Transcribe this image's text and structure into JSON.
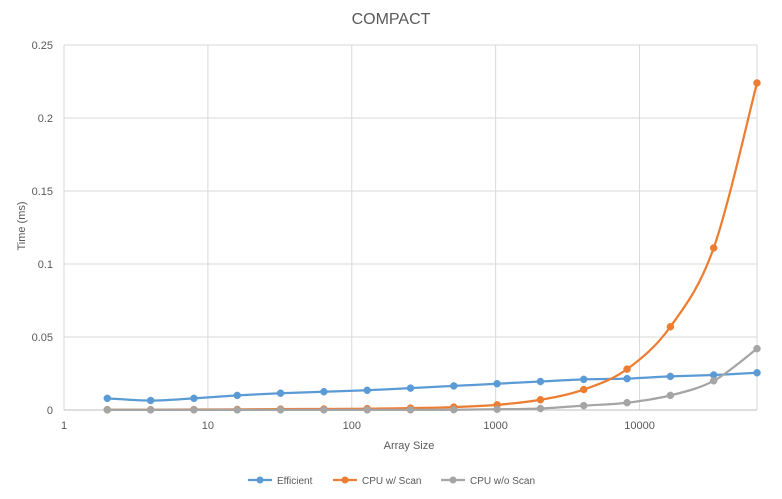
{
  "chart_data": {
    "type": "line",
    "title": "COMPACT",
    "xlabel": "Array Size",
    "ylabel": "Time (ms)",
    "x_scale": "log10",
    "xlim": [
      1,
      65536
    ],
    "ylim": [
      0,
      0.25
    ],
    "x_ticks": [
      1,
      10,
      100,
      1000,
      10000
    ],
    "x_tick_labels": [
      "1",
      "10",
      "100",
      "1000",
      "10000"
    ],
    "y_ticks": [
      0,
      0.05,
      0.1,
      0.15,
      0.2,
      0.25
    ],
    "y_tick_labels": [
      "0",
      "0.05",
      "0.1",
      "0.15",
      "0.2",
      "0.25"
    ],
    "grid": true,
    "legend_position": "bottom",
    "x": [
      2,
      4,
      8,
      16,
      32,
      64,
      128,
      256,
      512,
      1024,
      2048,
      4096,
      8192,
      16384,
      32768,
      65536
    ],
    "series": [
      {
        "name": "Efficient",
        "color": "#5B9BD5",
        "values": [
          0.008,
          0.0065,
          0.008,
          0.01,
          0.0115,
          0.0125,
          0.0135,
          0.015,
          0.0165,
          0.018,
          0.0195,
          0.021,
          0.0215,
          0.023,
          0.024,
          0.0255
        ]
      },
      {
        "name": "CPU w/ Scan",
        "color": "#ED7D31",
        "values": [
          0.0002,
          0.0002,
          0.0003,
          0.0004,
          0.0006,
          0.0007,
          0.0009,
          0.0013,
          0.002,
          0.0035,
          0.007,
          0.014,
          0.028,
          0.057,
          0.111,
          0.224
        ]
      },
      {
        "name": "CPU w/o Scan",
        "color": "#A5A5A5",
        "values": [
          0.0001,
          0.0001,
          0.0001,
          0.0001,
          0.0001,
          0.0001,
          0.0001,
          0.0001,
          0.0002,
          0.0005,
          0.001,
          0.003,
          0.005,
          0.01,
          0.02,
          0.042
        ]
      }
    ]
  }
}
